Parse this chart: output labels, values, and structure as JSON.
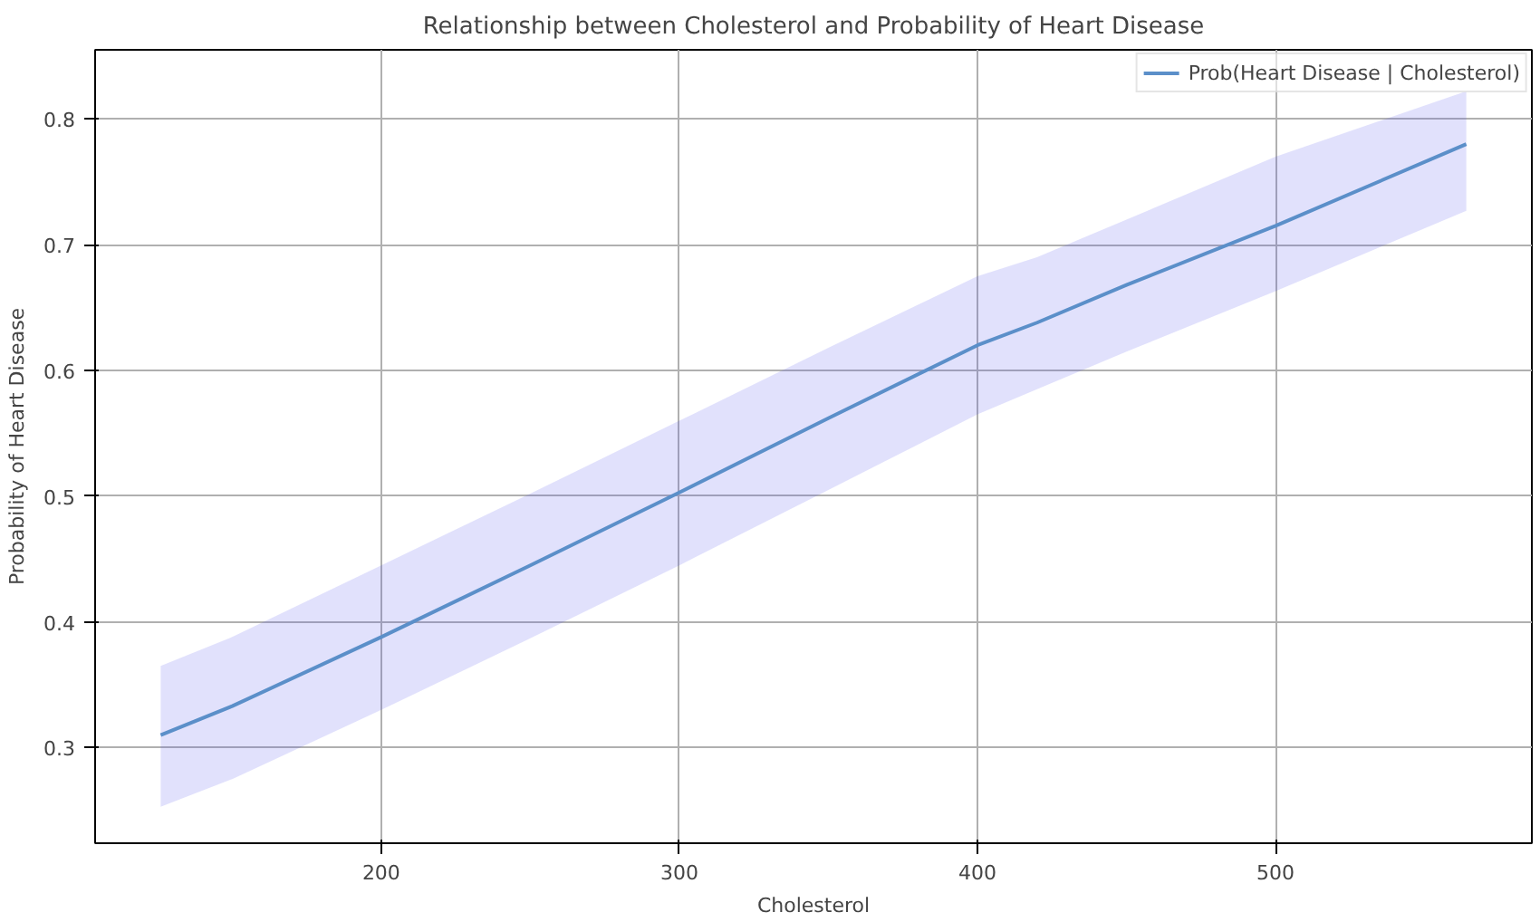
{
  "chart_data": {
    "type": "line",
    "title": "Relationship between Cholesterol and Probability of Heart Disease",
    "xlabel": "Cholesterol",
    "ylabel": "Probability of Heart Disease",
    "xlim": [
      104,
      586
    ],
    "xticks": [
      200,
      300,
      400,
      500
    ],
    "ylim": [
      0.224,
      0.855
    ],
    "yticks": [
      0.3,
      0.4,
      0.5,
      0.6,
      0.7,
      0.8
    ],
    "grid": true,
    "legend": "top right",
    "line_style": "solid",
    "marker": "none",
    "series": [
      {
        "name": "Prob(Heart Disease | Cholesterol)",
        "color": "#5b8fc9",
        "x": [
          126,
          150,
          200,
          250,
          300,
          350,
          400,
          420,
          450,
          500,
          564
        ],
        "values": [
          0.31,
          0.333,
          0.388,
          0.445,
          0.503,
          0.562,
          0.62,
          0.638,
          0.668,
          0.715,
          0.78
        ],
        "lower": [
          0.253,
          0.275,
          0.33,
          0.387,
          0.445,
          0.505,
          0.565,
          0.585,
          0.615,
          0.663,
          0.727
        ],
        "upper": [
          0.365,
          0.388,
          0.445,
          0.502,
          0.56,
          0.618,
          0.675,
          0.69,
          0.72,
          0.77,
          0.822
        ]
      }
    ]
  }
}
